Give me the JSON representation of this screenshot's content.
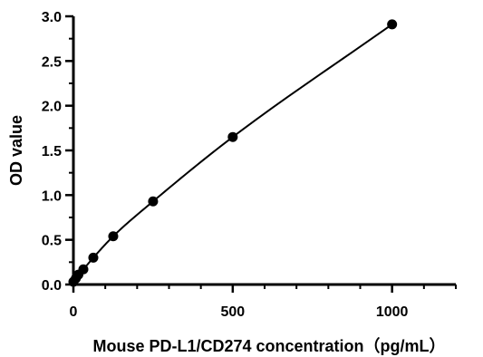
{
  "chart_data": {
    "type": "scatter",
    "title": "",
    "xlabel": "Mouse PD-L1/CD274 concentration（pg/mL）",
    "ylabel": "OD value",
    "xlim": [
      0,
      1200
    ],
    "ylim": [
      0,
      3.0
    ],
    "x_ticks": [
      "0",
      "500",
      "1000"
    ],
    "y_ticks": [
      "0.0",
      "0.5",
      "1.0",
      "1.5",
      "2.0",
      "2.5",
      "3.0"
    ],
    "grid": false,
    "legend": "none",
    "fit_curve": true,
    "colors": {
      "points": "#000000",
      "curve": "#000000",
      "axes": "#000000"
    },
    "series": [
      {
        "x": [
          0,
          7.8,
          15.6,
          31.25,
          62.5,
          125,
          250,
          500,
          1000
        ],
        "y": [
          0.03,
          0.07,
          0.11,
          0.17,
          0.3,
          0.54,
          0.93,
          1.65,
          2.91
        ]
      }
    ]
  }
}
